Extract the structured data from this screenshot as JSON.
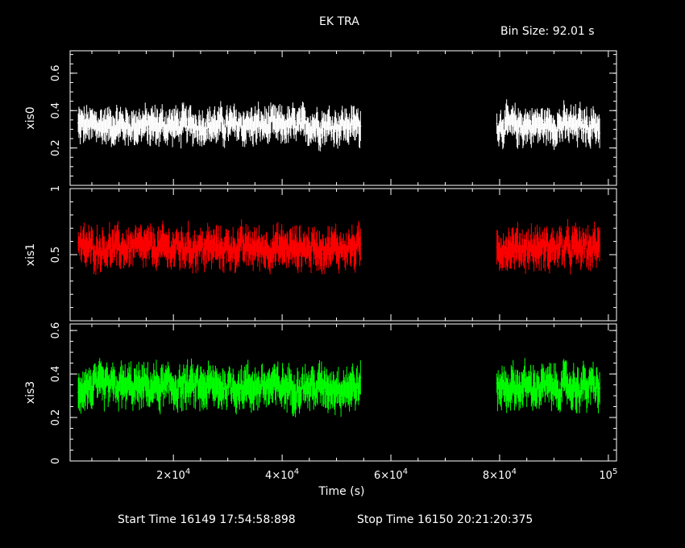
{
  "title": "EK TRA",
  "bin_size_label": "Bin Size: 92.01 s",
  "start_time_label": "Start Time 16149 17:54:58:898",
  "stop_time_label": "Stop Time 16150 20:21:20:375",
  "colors": {
    "background": "#000000",
    "axes": "#ffffff",
    "xis0": "#ffffff",
    "xis1": "#ff0000",
    "xis3": "#00ff00"
  },
  "chart_data": {
    "type": "line",
    "xlabel": "Time (s)",
    "x_tick_labels": [
      "2×10^4",
      "4×10^4",
      "6×10^4",
      "8×10^4",
      "10^5"
    ],
    "x_ticks": [
      20000,
      40000,
      60000,
      80000,
      100000
    ],
    "xlim": [
      1000,
      101500
    ],
    "panels": [
      {
        "name": "xis0",
        "ylabel": "xis0",
        "color": "#ffffff",
        "ylim": [
          0,
          0.72
        ],
        "y_ticks": [
          0.2,
          0.4,
          0.6
        ],
        "y_tick_labels": [
          "0.2",
          "0.4",
          "0.6"
        ],
        "segments": [
          [
            2500,
            54500
          ],
          [
            79500,
            98500
          ]
        ],
        "mean": 0.32,
        "amplitude": 0.07
      },
      {
        "name": "xis1",
        "ylabel": "xis1",
        "color": "#ff0000",
        "ylim": [
          0,
          1.0
        ],
        "y_ticks": [
          0.5,
          1.0
        ],
        "y_tick_labels": [
          "0.5",
          "1"
        ],
        "segments": [
          [
            2500,
            54500
          ],
          [
            79500,
            98500
          ]
        ],
        "mean": 0.55,
        "amplitude": 0.11
      },
      {
        "name": "xis3",
        "ylabel": "xis3",
        "color": "#00ff00",
        "ylim": [
          0,
          0.63
        ],
        "y_ticks": [
          0.0,
          0.2,
          0.4,
          0.6
        ],
        "y_tick_labels": [
          "0",
          "0.2",
          "0.4",
          "0.6"
        ],
        "segments": [
          [
            2500,
            54500
          ],
          [
            79500,
            98500
          ]
        ],
        "mean": 0.34,
        "amplitude": 0.07
      }
    ]
  }
}
